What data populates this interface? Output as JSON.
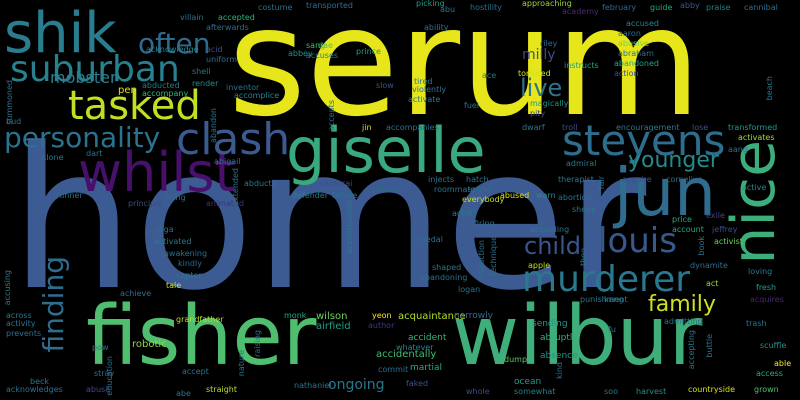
{
  "words": [
    {
      "text": "serum",
      "color": "#e6e61a"
    },
    {
      "text": "homer",
      "color": "#3b5b92"
    },
    {
      "text": "fisher",
      "color": "#4fbf6f"
    },
    {
      "text": "wilbur",
      "color": "#3fae7a"
    },
    {
      "text": "giselle",
      "color": "#3aa97f"
    },
    {
      "text": "shik",
      "color": "#2a7d8e"
    },
    {
      "text": "jun",
      "color": "#2f6c8e"
    },
    {
      "text": "nice",
      "color": "#3cae7c"
    },
    {
      "text": "whilst",
      "color": "#46106b"
    },
    {
      "text": "clash",
      "color": "#3b5a8f"
    },
    {
      "text": "steyens",
      "color": "#2d6e8e"
    },
    {
      "text": "tasked",
      "color": "#c2df23"
    },
    {
      "text": "suburban",
      "color": "#26828e"
    },
    {
      "text": "personality",
      "color": "#2c728e"
    },
    {
      "text": "often",
      "color": "#2f6b8e"
    },
    {
      "text": "louis",
      "color": "#37598c"
    },
    {
      "text": "murderer",
      "color": "#2a788e"
    },
    {
      "text": "younger",
      "color": "#238a8d"
    },
    {
      "text": "finding",
      "color": "#2e6d8e"
    },
    {
      "text": "child",
      "color": "#3a548c"
    },
    {
      "text": "live",
      "color": "#2c738e"
    },
    {
      "text": "family",
      "color": "#cde11d"
    },
    {
      "text": "milly",
      "color": "#3e4a89"
    },
    {
      "text": "mobster",
      "color": "#287d8e"
    },
    {
      "text": "ongoing",
      "color": "#2a768e"
    },
    {
      "text": "robotic",
      "color": "#8fd744"
    },
    {
      "text": "wilson",
      "color": "#6ece58"
    },
    {
      "text": "airfield",
      "color": "#1f9e89"
    },
    {
      "text": "monk",
      "color": "#22a785"
    },
    {
      "text": "yeon",
      "color": "#fde725"
    },
    {
      "text": "acquaintance",
      "color": "#b5de2b"
    },
    {
      "text": "narrowly",
      "color": "#31688e"
    },
    {
      "text": "sending",
      "color": "#1f968b"
    },
    {
      "text": "abruptly",
      "color": "#2fb47c"
    },
    {
      "text": "absence",
      "color": "#1f948c"
    },
    {
      "text": "accidentally",
      "color": "#3fbc73"
    },
    {
      "text": "accident",
      "color": "#35b779"
    },
    {
      "text": "whatever",
      "color": "#25858e"
    },
    {
      "text": "martial",
      "color": "#27ad81"
    },
    {
      "text": "commit",
      "color": "#2d708e"
    },
    {
      "text": "nathaniel",
      "color": "#2b758e"
    },
    {
      "text": "faked",
      "color": "#3b528b"
    },
    {
      "text": "dump",
      "color": "#5ec962"
    },
    {
      "text": "ocean",
      "color": "#1fa088"
    },
    {
      "text": "somewhat",
      "color": "#277f8e"
    },
    {
      "text": "grown",
      "color": "#4ac16d"
    },
    {
      "text": "harvest",
      "color": "#21918c"
    },
    {
      "text": "countryside",
      "color": "#d8e219"
    },
    {
      "text": "access",
      "color": "#28ae80"
    },
    {
      "text": "able",
      "color": "#fde725"
    },
    {
      "text": "scuffle",
      "color": "#20928c"
    },
    {
      "text": "trash",
      "color": "#2c728e"
    },
    {
      "text": "acquires",
      "color": "#482475"
    },
    {
      "text": "loving",
      "color": "#2a788e"
    },
    {
      "text": "fresh",
      "color": "#1fa187"
    },
    {
      "text": "exile",
      "color": "#3f4788"
    },
    {
      "text": "jeffrey",
      "color": "#3e4a89"
    },
    {
      "text": "activist",
      "color": "#6ece58"
    },
    {
      "text": "price",
      "color": "#26ad81"
    },
    {
      "text": "account",
      "color": "#22a884"
    },
    {
      "text": "act",
      "color": "#9bd93c"
    },
    {
      "text": "active",
      "color": "#25848e"
    },
    {
      "text": "transformed",
      "color": "#1f9a8a"
    },
    {
      "text": "activates",
      "color": "#a0da39"
    },
    {
      "text": "cannibal",
      "color": "#2e6e8e"
    },
    {
      "text": "praise",
      "color": "#27808e"
    },
    {
      "text": "abby",
      "color": "#38598c"
    },
    {
      "text": "guide",
      "color": "#22a884"
    },
    {
      "text": "february",
      "color": "#31688e"
    },
    {
      "text": "academy",
      "color": "#472a7a"
    },
    {
      "text": "accused",
      "color": "#25848e"
    },
    {
      "text": "abusive",
      "color": "#7ad151"
    },
    {
      "text": "abandoned",
      "color": "#20a486"
    },
    {
      "text": "action",
      "color": "#3b528b"
    },
    {
      "text": "instructs",
      "color": "#1fa187"
    },
    {
      "text": "riley",
      "color": "#31688e"
    },
    {
      "text": "approaching",
      "color": "#9bd93c"
    },
    {
      "text": "hostility",
      "color": "#2d708e"
    },
    {
      "text": "abu",
      "color": "#2a788e"
    },
    {
      "text": "picking",
      "color": "#1f9e89"
    },
    {
      "text": "transported",
      "color": "#2d708e"
    },
    {
      "text": "costume",
      "color": "#2e6d8e"
    },
    {
      "text": "villain",
      "color": "#2c728e"
    },
    {
      "text": "accepted",
      "color": "#2fb47c"
    },
    {
      "text": "afterwards",
      "color": "#2f6c8e"
    },
    {
      "text": "sang",
      "color": "#3dbc74"
    },
    {
      "text": "prince",
      "color": "#1f9a8a"
    },
    {
      "text": "abbey",
      "color": "#21918c"
    },
    {
      "text": "dae",
      "color": "#4ac16d"
    },
    {
      "text": "accuses",
      "color": "#2a788e"
    },
    {
      "text": "acknowledge",
      "color": "#23898e"
    },
    {
      "text": "uniform",
      "color": "#2c738e"
    },
    {
      "text": "shell",
      "color": "#2a768e"
    },
    {
      "text": "render",
      "color": "#21908d"
    },
    {
      "text": "abducted",
      "color": "#2a788e"
    },
    {
      "text": "accompany",
      "color": "#35b779"
    },
    {
      "text": "pen",
      "color": "#d8e219"
    },
    {
      "text": "inventor",
      "color": "#2c728e"
    },
    {
      "text": "accomplice",
      "color": "#26828e"
    },
    {
      "text": "slow",
      "color": "#3b528b"
    },
    {
      "text": "tired",
      "color": "#2a778e"
    },
    {
      "text": "ace",
      "color": "#2b748e"
    },
    {
      "text": "tortured",
      "color": "#d2e21b"
    },
    {
      "text": "magically",
      "color": "#21918c"
    },
    {
      "text": "pity",
      "color": "#3f4889"
    },
    {
      "text": "fuel",
      "color": "#2c738e"
    },
    {
      "text": "jin",
      "color": "#d0e11c"
    },
    {
      "text": "accompanies",
      "color": "#2d708e"
    },
    {
      "text": "dwarf",
      "color": "#2a788e"
    },
    {
      "text": "troll",
      "color": "#3e4989"
    },
    {
      "text": "encouragement",
      "color": "#2a788e"
    },
    {
      "text": "lose",
      "color": "#3b528b"
    },
    {
      "text": "abigail",
      "color": "#2c728e"
    },
    {
      "text": "abducts",
      "color": "#2a778e"
    },
    {
      "text": "defender",
      "color": "#26818e"
    },
    {
      "text": "failure",
      "color": "#2a788e"
    },
    {
      "text": "samurai",
      "color": "#3e4c8a"
    },
    {
      "text": "suicidal",
      "color": "#2e6d8e"
    },
    {
      "text": "injects",
      "color": "#2d708e"
    },
    {
      "text": "hatch",
      "color": "#2c728e"
    },
    {
      "text": "therapist",
      "color": "#2a788e"
    },
    {
      "text": "acquire",
      "color": "#3b528b"
    },
    {
      "text": "cornelius",
      "color": "#2f6c8e"
    },
    {
      "text": "runner",
      "color": "#2c728e"
    },
    {
      "text": "principal",
      "color": "#3e4a89"
    },
    {
      "text": "kung",
      "color": "#2f6b8e"
    },
    {
      "text": "animated",
      "color": "#46307e"
    },
    {
      "text": "roommate",
      "color": "#2d708e"
    },
    {
      "text": "everybody",
      "color": "#c8e020"
    },
    {
      "text": "abused",
      "color": "#e3e418"
    },
    {
      "text": "warn",
      "color": "#21908d"
    },
    {
      "text": "abortion",
      "color": "#2c728e"
    },
    {
      "text": "sheep",
      "color": "#2a788e"
    },
    {
      "text": "spider",
      "color": "#2e6e8e"
    },
    {
      "text": "vega",
      "color": "#2c728e"
    },
    {
      "text": "activated",
      "color": "#2a788e"
    },
    {
      "text": "awakening",
      "color": "#2d708e"
    },
    {
      "text": "kindly",
      "color": "#31688e"
    },
    {
      "text": "captor",
      "color": "#2a788e"
    },
    {
      "text": "tale",
      "color": "#d2e21b"
    },
    {
      "text": "grandfather",
      "color": "#b8de29"
    },
    {
      "text": "achieve",
      "color": "#2d708e"
    },
    {
      "text": "activity",
      "color": "#2c728e"
    },
    {
      "text": "across",
      "color": "#2a788e"
    },
    {
      "text": "prevents",
      "color": "#2d708e"
    },
    {
      "text": "pow",
      "color": "#2a788e"
    },
    {
      "text": "stray",
      "color": "#2d708e"
    },
    {
      "text": "beck",
      "color": "#2a788e"
    },
    {
      "text": "acknowledges",
      "color": "#2d708e"
    },
    {
      "text": "abuse",
      "color": "#3e4a89"
    },
    {
      "text": "abe",
      "color": "#2a788e"
    },
    {
      "text": "straight",
      "color": "#c2df23"
    },
    {
      "text": "accept",
      "color": "#2c728e"
    },
    {
      "text": "actor",
      "color": "#2a788e"
    },
    {
      "text": "firing",
      "color": "#2d708e"
    },
    {
      "text": "hurt",
      "color": "#2c728e"
    },
    {
      "text": "according",
      "color": "#2a788e"
    },
    {
      "text": "apple",
      "color": "#c2df23"
    },
    {
      "text": "shaped",
      "color": "#2a788e"
    },
    {
      "text": "abandoning",
      "color": "#2d708e"
    },
    {
      "text": "logan",
      "color": "#2c728e"
    },
    {
      "text": "medal",
      "color": "#2d708e"
    },
    {
      "text": "punishment",
      "color": "#2a788e"
    },
    {
      "text": "kang",
      "color": "#2c728e"
    },
    {
      "text": "admitting",
      "color": "#2d708e"
    },
    {
      "text": "fu",
      "color": "#2a788e"
    },
    {
      "text": "author",
      "color": "#46307e"
    },
    {
      "text": "accepting",
      "color": "#2a788e"
    },
    {
      "text": "soo",
      "color": "#2a788e"
    },
    {
      "text": "ability",
      "color": "#2c728e"
    },
    {
      "text": "acid",
      "color": "#3e4a89"
    },
    {
      "text": "summoned",
      "color": "#2d708e"
    },
    {
      "text": "bud",
      "color": "#2c728e"
    },
    {
      "text": "clone",
      "color": "#2a788e"
    },
    {
      "text": "dart",
      "color": "#2d708e"
    },
    {
      "text": "admiral",
      "color": "#2a788e"
    },
    {
      "text": "aang",
      "color": "#2c728e"
    },
    {
      "text": "beach",
      "color": "#2a788e"
    },
    {
      "text": "violently",
      "color": "#2d708e"
    },
    {
      "text": "activate",
      "color": "#2a788e"
    },
    {
      "text": "aaron",
      "color": "#2c728e"
    },
    {
      "text": "abraham",
      "color": "#2d708e"
    },
    {
      "text": "accusing",
      "color": "#2a788e"
    },
    {
      "text": "raising",
      "color": "#2d708e"
    },
    {
      "text": "extended",
      "color": "#2c728e"
    },
    {
      "text": "accompanied",
      "color": "#2a788e"
    },
    {
      "text": "technique",
      "color": "#2d708e"
    },
    {
      "text": "abduction",
      "color": "#2c728e"
    },
    {
      "text": "theo",
      "color": "#2a788e"
    },
    {
      "text": "kind",
      "color": "#2d708e"
    },
    {
      "text": "whole",
      "color": "#3e4a89"
    },
    {
      "text": "fair",
      "color": "#2a788e"
    },
    {
      "text": "book",
      "color": "#2c728e"
    },
    {
      "text": "dynamite",
      "color": "#2d708e"
    },
    {
      "text": "abandon",
      "color": "#2a788e"
    },
    {
      "text": "education",
      "color": "#2d708e"
    },
    {
      "text": "nature",
      "color": "#2a788e"
    },
    {
      "text": "accepts",
      "color": "#2d708e"
    },
    {
      "text": "buttle",
      "color": "#2c728e"
    }
  ]
}
